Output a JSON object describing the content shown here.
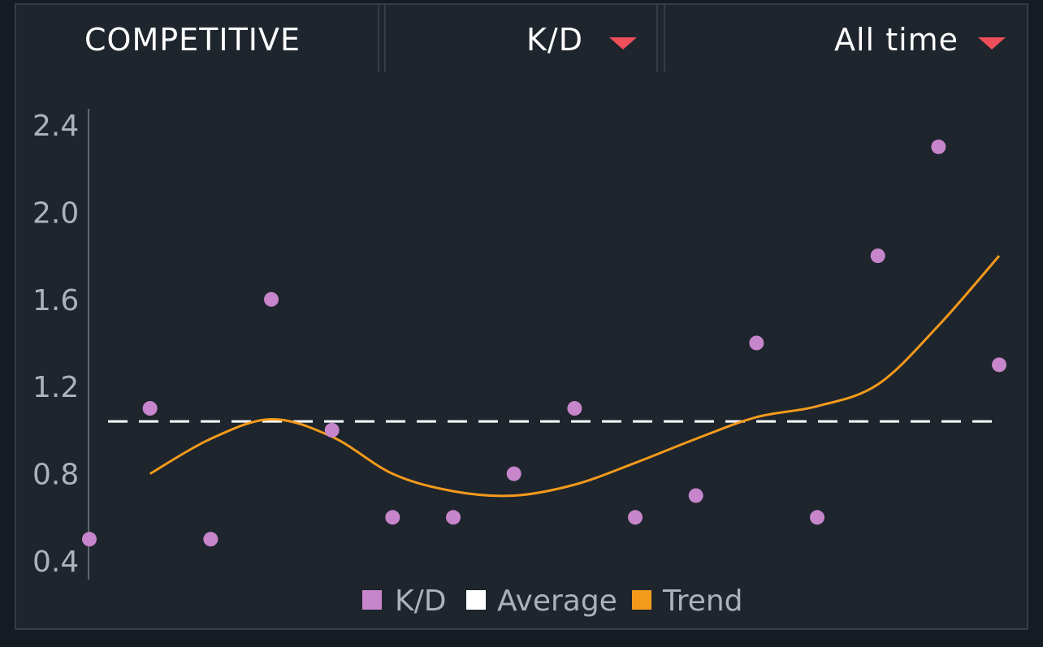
{
  "header": {
    "mode_label": "COMPETITIVE",
    "stat_label": "K/D",
    "range_label": "All time"
  },
  "colors": {
    "kd": "#c785cb",
    "average": "#ffffff",
    "trend": "#f39a1c",
    "caret": "#ee4f5b"
  },
  "chart_data": {
    "type": "scatter",
    "y_ticks": [
      "2.4",
      "2.0",
      "1.6",
      "1.2",
      "0.8",
      "0.4"
    ],
    "ylim": [
      0.4,
      2.4
    ],
    "x": [
      1,
      2,
      3,
      4,
      5,
      6,
      7,
      8,
      9,
      10,
      11,
      12,
      13,
      14,
      15,
      16
    ],
    "series": [
      {
        "name": "K/D",
        "values": [
          0.5,
          1.1,
          0.5,
          1.6,
          1.0,
          0.6,
          0.6,
          0.8,
          1.1,
          0.6,
          0.7,
          1.4,
          0.6,
          1.8,
          2.3,
          1.3
        ]
      },
      {
        "name": "Average",
        "values": [
          1.04,
          1.04
        ]
      },
      {
        "name": "Trend",
        "values": [
          0.8,
          0.96,
          1.05,
          0.97,
          0.8,
          0.72,
          0.7,
          0.75,
          0.85,
          0.96,
          1.06,
          1.11,
          1.21,
          1.48,
          1.8
        ]
      }
    ],
    "legend": [
      "K/D",
      "Average",
      "Trend"
    ],
    "grid": false
  }
}
